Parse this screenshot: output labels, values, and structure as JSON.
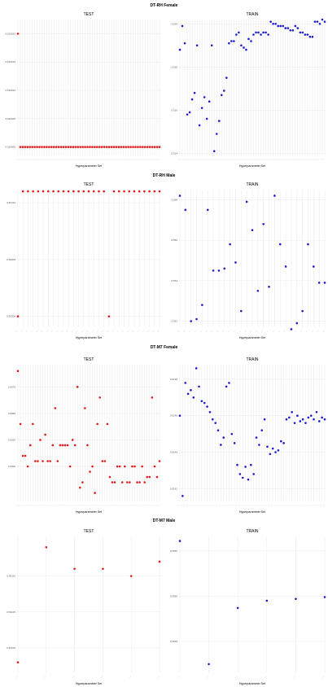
{
  "sections": [
    {
      "title": "DT-RH Female",
      "panels": [
        {
          "title": "TEST",
          "xlabel": "Hyperparameter Set",
          "color": "#e31a1c",
          "yticks": [
            "0.510000",
            "0.510005",
            "0.510010",
            "0.510015",
            "0.510020"
          ],
          "chart_data": {
            "type": "scatter",
            "ylim": [
              0.5099985,
              0.5100225
            ],
            "y": [
              0.51002,
              0.51,
              0.51,
              0.51,
              0.51,
              0.51,
              0.51,
              0.51,
              0.51,
              0.51,
              0.51,
              0.51,
              0.51,
              0.51,
              0.51,
              0.51,
              0.51,
              0.51,
              0.51,
              0.51,
              0.51,
              0.51,
              0.51,
              0.51,
              0.51,
              0.51,
              0.51,
              0.51,
              0.51,
              0.51,
              0.51,
              0.51,
              0.51,
              0.51,
              0.51,
              0.51,
              0.51,
              0.51,
              0.51,
              0.51,
              0.51,
              0.51,
              0.51,
              0.51,
              0.51,
              0.51,
              0.51,
              0.51,
              0.51,
              0.51,
              0.51,
              0.51,
              0.51,
              0.51,
              0.51,
              0.51,
              0.51,
              0.51,
              0.51,
              0.51
            ]
          }
        },
        {
          "title": "TRAIN",
          "xlabel": "Hyperparameter Set",
          "color": "#1c1ccf",
          "yticks": [
            "0.514",
            "0.516",
            "0.518",
            "0.520"
          ],
          "chart_data": {
            "type": "scatter",
            "ylim": [
              0.5139,
              0.5202
            ],
            "y": [
              0.5188,
              0.5199,
              0.5191,
              0.5158,
              0.5159,
              0.5165,
              0.5168,
              0.519,
              0.5153,
              0.5161,
              0.5166,
              0.5156,
              0.5164,
              0.519,
              0.5141,
              0.5149,
              0.5155,
              0.5167,
              0.5169,
              0.5175,
              0.5191,
              0.5192,
              0.5192,
              0.5195,
              0.5196,
              0.519,
              0.5189,
              0.5188,
              0.5193,
              0.5192,
              0.5195,
              0.5196,
              0.5196,
              0.5195,
              0.5196,
              0.5196,
              0.5195,
              0.5201,
              0.52,
              0.52,
              0.5199,
              0.5199,
              0.5199,
              0.5198,
              0.5198,
              0.5197,
              0.5197,
              0.5199,
              0.5198,
              0.5196,
              0.5196,
              0.5195,
              0.5195,
              0.5194,
              0.5194,
              0.5201,
              0.5201,
              0.52,
              0.5202,
              0.5201
            ]
          }
        }
      ]
    },
    {
      "title": "DT-RH Male",
      "panels": [
        {
          "title": "TEST",
          "xlabel": "Hyperparameter Set",
          "color": "#e31a1c",
          "yticks": [
            "0.50200",
            "0.50205",
            "0.50210"
          ],
          "chart_data": {
            "type": "scatter",
            "ylim": [
              0.5019905,
              0.5021115
            ],
            "y": [
              0.502,
              0.50211,
              0.50211,
              0.50211,
              0.50211,
              0.50211,
              0.50211,
              0.50211,
              0.50211,
              0.50211,
              0.50211,
              0.50211,
              0.50211,
              0.50211,
              0.50211,
              0.50211,
              0.50211,
              0.50211,
              0.502,
              0.50211,
              0.50211,
              0.50211,
              0.50211,
              0.50211,
              0.50211,
              0.50211,
              0.50211,
              0.50211,
              0.50211
            ]
          }
        },
        {
          "title": "TRAIN",
          "xlabel": "Hyperparameter Set",
          "color": "#1c1ccf",
          "yticks": [
            "0.552",
            "0.554",
            "0.556",
            "0.558"
          ],
          "chart_data": {
            "type": "scatter",
            "ylim": [
              0.5517,
              0.5585
            ],
            "y": [
              0.5582,
              0.5575,
              0.552,
              0.5521,
              0.5528,
              0.5575,
              0.5545,
              0.5545,
              0.5546,
              0.5558,
              0.5549,
              0.5525,
              0.5579,
              0.5565,
              0.5535,
              0.5568,
              0.5537,
              0.5582,
              0.5558,
              0.5547,
              0.5516,
              0.5519,
              0.5525,
              0.5558,
              0.5547,
              0.5539,
              0.5539
            ]
          }
        }
      ]
    },
    {
      "title": "DT-M7 Female",
      "panels": [
        {
          "title": "TEST",
          "xlabel": "Hyperparameter Set",
          "color": "#e31a1c",
          "yticks": [
            "0.5000",
            "0.5025",
            "0.5050",
            "0.5075"
          ],
          "chart_data": {
            "type": "scatter",
            "ylim": [
              0.4967,
              0.5096
            ],
            "y": [
              0.509,
              0.504,
              0.501,
              0.501,
              0.5,
              0.502,
              0.504,
              0.5005,
              0.5005,
              0.5025,
              0.5005,
              0.503,
              0.5005,
              0.5005,
              0.502,
              0.5055,
              0.5005,
              0.502,
              0.502,
              0.502,
              0.502,
              0.5,
              0.5025,
              0.502,
              0.5075,
              0.498,
              0.4985,
              0.5055,
              0.502,
              0.4995,
              0.5,
              0.4975,
              0.504,
              0.5065,
              0.5005,
              0.5005,
              0.504,
              0.499,
              0.4985,
              0.4985,
              0.5,
              0.5,
              0.4985,
              0.5,
              0.4985,
              0.4985,
              0.5,
              0.5,
              0.4985,
              0.4985,
              0.5,
              0.4985,
              0.499,
              0.499,
              0.5065,
              0.5,
              0.499,
              0.5005
            ]
          }
        },
        {
          "title": "TRAIN",
          "xlabel": "Hyperparameter Set",
          "color": "#1c1ccf",
          "yticks": [
            "0.5142",
            "0.5144",
            "0.5146",
            "0.5148"
          ],
          "chart_data": {
            "type": "scatter",
            "ylim": [
              0.51413,
              0.51488
            ],
            "y": [
              0.5146,
              0.51416,
              0.51478,
              0.51472,
              0.51474,
              0.5147,
              0.51486,
              0.51476,
              0.51468,
              0.51467,
              0.51465,
              0.51462,
              0.51458,
              0.51456,
              0.51452,
              0.51444,
              0.51448,
              0.51476,
              0.51478,
              0.5145,
              0.51445,
              0.51433,
              0.51428,
              0.51426,
              0.51432,
              0.51425,
              0.51433,
              0.51428,
              0.51448,
              0.51444,
              0.51452,
              0.51458,
              0.51443,
              0.51439,
              0.51442,
              0.5144,
              0.51441,
              0.51446,
              0.51445,
              0.51458,
              0.51459,
              0.51462,
              0.51456,
              0.5146,
              0.51457,
              0.51458,
              0.51456,
              0.51459,
              0.5146,
              0.51458,
              0.51462,
              0.51457,
              0.51459,
              0.51458
            ]
          }
        }
      ]
    },
    {
      "title": "DT-M7 Male",
      "panels": [
        {
          "title": "TEST",
          "xlabel": "Hyperparameter Set",
          "color": "#e31a1c",
          "yticks": [
            "0.50100",
            "0.50105",
            "0.50110"
          ],
          "chart_data": {
            "type": "scatter",
            "ylim": [
              0.500965,
              0.501155
            ],
            "y": [
              0.50098,
              0.50114,
              0.50111,
              0.50111,
              0.5011,
              0.50112
            ]
          }
        },
        {
          "title": "TRAIN",
          "xlabel": "Hyperparameter Set",
          "color": "#1c1ccf",
          "yticks": [
            "0.5545",
            "0.5550",
            "0.5555"
          ],
          "chart_data": {
            "type": "scatter",
            "ylim": [
              0.55415,
              0.55566
            ],
            "y": [
              0.55561,
              0.55425,
              0.55487,
              0.55495,
              0.55497,
              0.55499
            ]
          }
        }
      ]
    }
  ]
}
